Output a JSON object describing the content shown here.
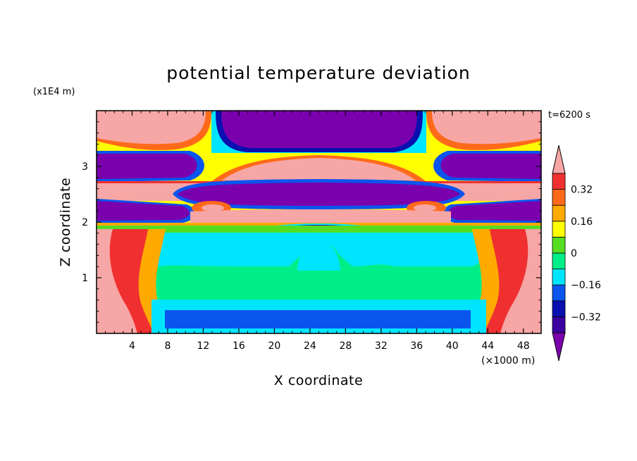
{
  "chart_data": {
    "type": "heatmap",
    "title": "potential temperature deviation",
    "xlabel": "X coordinate",
    "ylabel": "Z coordinate",
    "x_unit": "(×1000 m)",
    "y_unit": "(x1E4 m)",
    "time_label": "t=6200 s",
    "xlim": [
      0,
      50
    ],
    "ylim": [
      0,
      4
    ],
    "x_ticks": [
      "4",
      "8",
      "12",
      "16",
      "20",
      "24",
      "28",
      "32",
      "36",
      "40",
      "44",
      "48"
    ],
    "y_ticks": [
      "1",
      "2",
      "3"
    ],
    "colorbar": {
      "labels": [
        "0.32",
        "0.16",
        "0",
        "−0.16",
        "−0.32"
      ],
      "colors": [
        "#7a00ad",
        "#3a00a0",
        "#0a0fb0",
        "#0a55ee",
        "#00e5ff",
        "#00ee88",
        "#55dd22",
        "#ffff00",
        "#ffaa00",
        "#ff6a1a",
        "#f03030",
        "#f7a6a6"
      ]
    }
  }
}
